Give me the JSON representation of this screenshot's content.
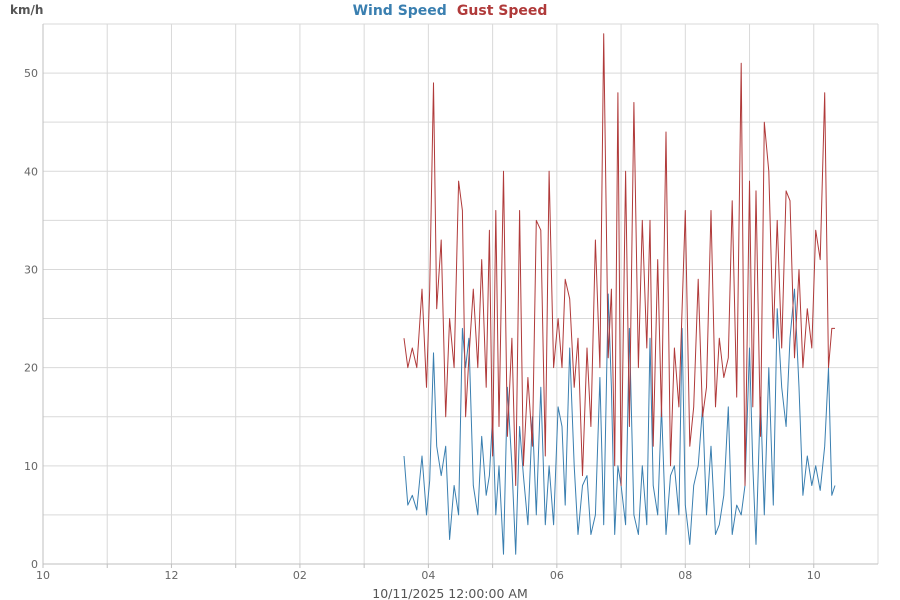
{
  "chart_data": {
    "type": "line",
    "unit_label": "km/h",
    "xlabel": "10/11/2025 12:00:00 AM",
    "x_tick_labels": [
      "10",
      "12",
      "02",
      "04",
      "06",
      "08",
      "10"
    ],
    "x_tick_hours": [
      -2,
      0,
      2,
      4,
      6,
      8,
      10
    ],
    "x_minor_hours": [
      -1,
      1,
      3,
      5,
      7,
      9
    ],
    "x_range_hours": [
      -2,
      11
    ],
    "y_ticks": [
      0,
      10,
      20,
      30,
      40,
      50
    ],
    "y_minor": [
      5,
      15,
      25,
      35,
      45
    ],
    "ylim": [
      0,
      55
    ],
    "grid": true,
    "legend_position": "top-center",
    "series": [
      {
        "name": "Wind Speed",
        "color": "#3a7fb0",
        "x": [
          3.62,
          3.68,
          3.75,
          3.82,
          3.9,
          3.97,
          4.02,
          4.08,
          4.13,
          4.2,
          4.27,
          4.33,
          4.4,
          4.47,
          4.53,
          4.58,
          4.63,
          4.7,
          4.77,
          4.83,
          4.9,
          4.95,
          5.0,
          5.05,
          5.1,
          5.17,
          5.23,
          5.3,
          5.36,
          5.42,
          5.48,
          5.55,
          5.62,
          5.68,
          5.75,
          5.82,
          5.88,
          5.95,
          6.02,
          6.08,
          6.13,
          6.2,
          6.27,
          6.33,
          6.4,
          6.47,
          6.53,
          6.6,
          6.67,
          6.73,
          6.8,
          6.85,
          6.9,
          6.95,
          7.0,
          7.07,
          7.13,
          7.2,
          7.27,
          7.33,
          7.4,
          7.45,
          7.5,
          7.57,
          7.63,
          7.7,
          7.77,
          7.83,
          7.9,
          7.95,
          8.0,
          8.07,
          8.13,
          8.2,
          8.27,
          8.33,
          8.4,
          8.47,
          8.53,
          8.6,
          8.67,
          8.73,
          8.8,
          8.87,
          8.93,
          9.0,
          9.05,
          9.1,
          9.17,
          9.23,
          9.3,
          9.37,
          9.43,
          9.5,
          9.57,
          9.63,
          9.7,
          9.77,
          9.83,
          9.9,
          9.97,
          10.03,
          10.1,
          10.17,
          10.23,
          10.28,
          10.33
        ],
        "y": [
          11,
          6,
          7,
          5.5,
          11,
          5,
          8.5,
          21.5,
          12,
          9,
          12,
          2.5,
          8,
          5,
          24,
          20,
          23,
          8,
          5,
          13,
          7,
          9,
          15,
          5,
          10,
          1,
          18,
          10,
          1,
          14,
          9,
          4,
          15,
          5,
          18,
          4,
          10,
          4,
          16,
          14,
          6,
          22,
          10,
          3,
          8,
          9,
          3,
          5,
          19,
          4,
          27.5,
          18,
          3,
          10,
          8,
          4,
          24,
          5,
          3,
          10,
          4,
          23,
          8,
          5,
          16,
          3,
          9,
          10,
          5,
          24,
          6,
          2,
          8,
          10,
          16,
          5,
          12,
          3,
          4,
          7,
          16,
          3,
          6,
          5,
          8,
          22,
          10,
          2,
          17,
          5,
          20,
          6,
          26,
          18,
          14,
          23,
          28,
          18,
          7,
          11,
          8,
          10,
          7.5,
          12,
          20,
          7,
          8
        ]
      },
      {
        "name": "Gust Speed",
        "color": "#b03a3a",
        "x": [
          3.62,
          3.68,
          3.75,
          3.82,
          3.9,
          3.97,
          4.02,
          4.08,
          4.13,
          4.2,
          4.27,
          4.33,
          4.4,
          4.47,
          4.53,
          4.58,
          4.63,
          4.7,
          4.77,
          4.83,
          4.9,
          4.95,
          5.0,
          5.05,
          5.1,
          5.17,
          5.23,
          5.3,
          5.36,
          5.42,
          5.48,
          5.55,
          5.62,
          5.68,
          5.75,
          5.82,
          5.88,
          5.95,
          6.02,
          6.08,
          6.13,
          6.2,
          6.27,
          6.33,
          6.4,
          6.47,
          6.53,
          6.6,
          6.67,
          6.73,
          6.8,
          6.85,
          6.9,
          6.95,
          7.0,
          7.07,
          7.13,
          7.2,
          7.27,
          7.33,
          7.4,
          7.45,
          7.5,
          7.57,
          7.63,
          7.7,
          7.77,
          7.83,
          7.9,
          7.95,
          8.0,
          8.07,
          8.13,
          8.2,
          8.27,
          8.33,
          8.4,
          8.47,
          8.53,
          8.6,
          8.67,
          8.73,
          8.8,
          8.87,
          8.93,
          9.0,
          9.05,
          9.1,
          9.17,
          9.23,
          9.3,
          9.37,
          9.43,
          9.5,
          9.57,
          9.63,
          9.7,
          9.77,
          9.83,
          9.9,
          9.97,
          10.03,
          10.1,
          10.17,
          10.23,
          10.28,
          10.33
        ],
        "y": [
          23,
          20,
          22,
          20,
          28,
          18,
          28,
          49,
          26,
          33,
          15,
          25,
          20,
          39,
          36,
          15,
          21,
          28,
          20,
          31,
          18,
          34,
          11,
          36,
          14,
          40,
          13,
          23,
          8,
          36,
          10,
          19,
          12,
          35,
          34,
          11,
          40,
          20,
          25,
          20,
          29,
          27,
          18,
          23,
          9,
          22,
          14,
          33,
          20,
          54,
          21,
          28,
          10,
          48,
          8,
          40,
          14,
          47,
          20,
          35,
          22,
          35,
          12,
          31,
          15,
          44,
          10,
          22,
          16,
          26,
          36,
          12,
          16,
          29,
          15,
          18,
          36,
          16,
          23,
          19,
          21,
          37,
          17,
          51,
          8,
          39,
          16,
          38,
          13,
          45,
          40,
          23,
          35,
          22,
          38,
          37,
          21,
          30,
          20,
          26,
          22,
          34,
          31,
          48,
          20,
          24,
          24
        ]
      }
    ]
  }
}
